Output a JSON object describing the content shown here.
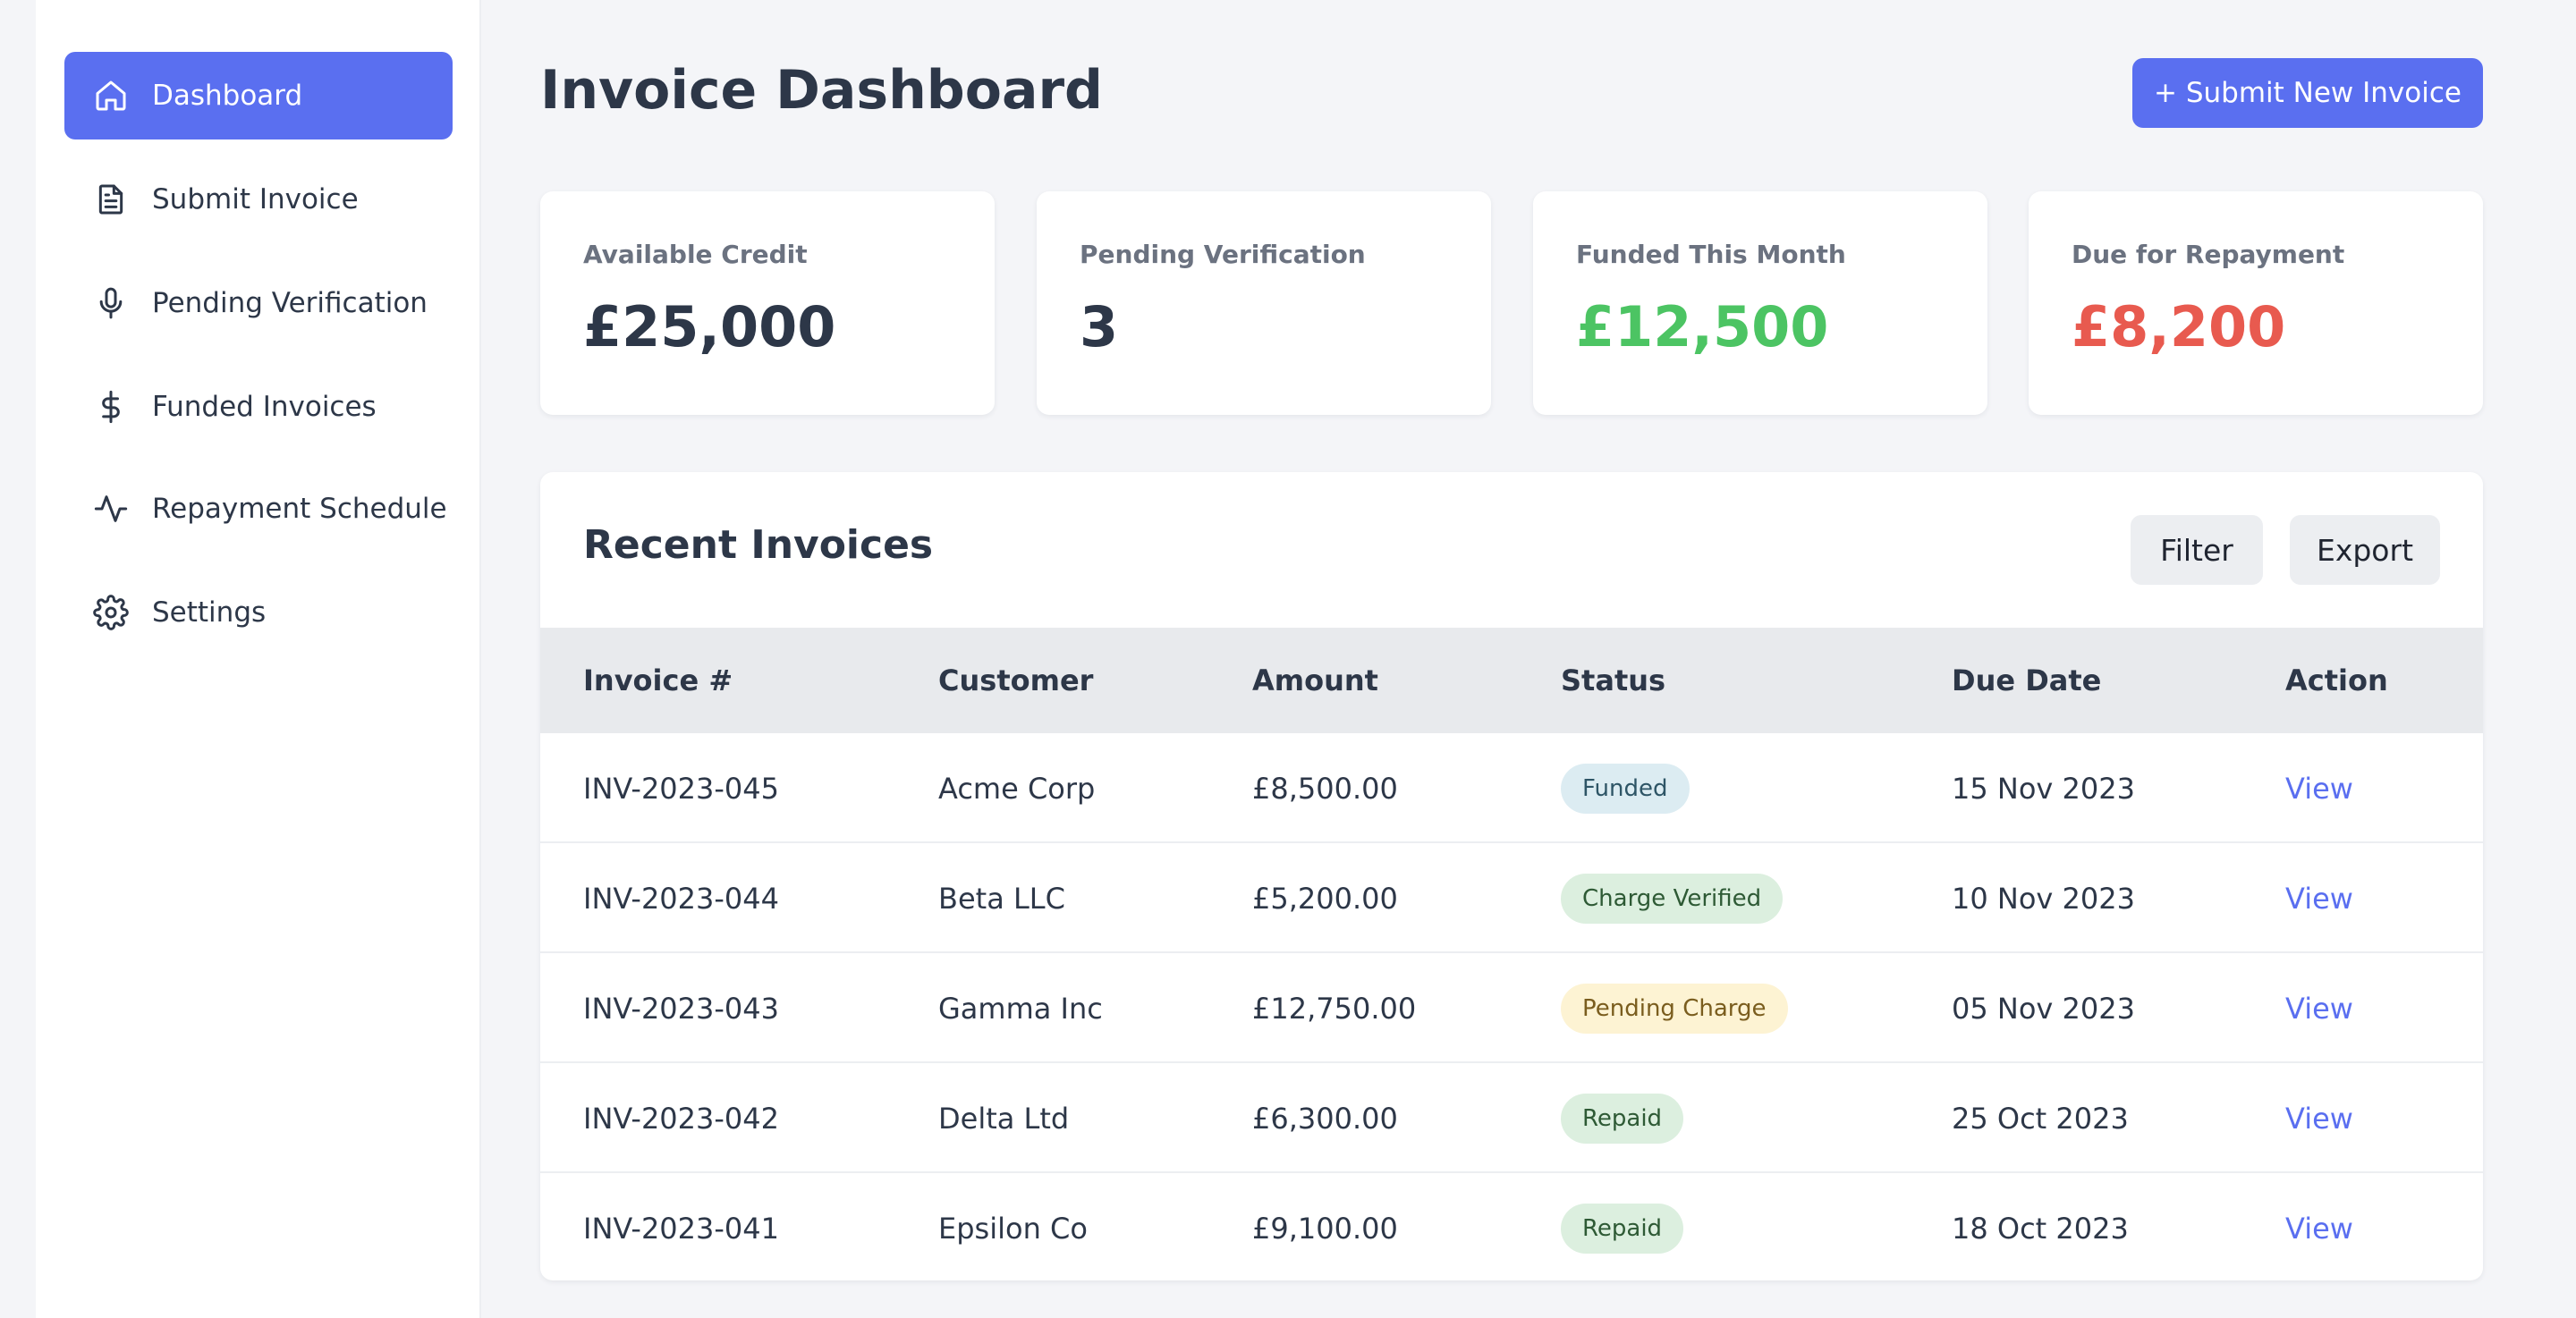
{
  "sidebar": {
    "items": [
      {
        "label": "Dashboard",
        "icon": "home-icon",
        "active": true
      },
      {
        "label": "Submit Invoice",
        "icon": "document-icon",
        "active": false
      },
      {
        "label": "Pending Verification",
        "icon": "microphone-icon",
        "active": false
      },
      {
        "label": "Funded Invoices",
        "icon": "dollar-icon",
        "active": false
      },
      {
        "label": "Repayment Schedule",
        "icon": "activity-icon",
        "active": false
      },
      {
        "label": "Settings",
        "icon": "gear-icon",
        "active": false
      }
    ]
  },
  "header": {
    "title": "Invoice Dashboard",
    "submit_button": "+ Submit New Invoice"
  },
  "stats": [
    {
      "label": "Available Credit",
      "value": "£25,000",
      "color": "#2d3748"
    },
    {
      "label": "Pending Verification",
      "value": "3",
      "color": "#2d3748"
    },
    {
      "label": "Funded This Month",
      "value": "£12,500",
      "color": "#4cc463"
    },
    {
      "label": "Due for Repayment",
      "value": "£8,200",
      "color": "#e85a4f"
    }
  ],
  "invoices": {
    "title": "Recent Invoices",
    "filter_button": "Filter",
    "export_button": "Export",
    "columns": [
      "Invoice #",
      "Customer",
      "Amount",
      "Status",
      "Due Date",
      "Action"
    ],
    "rows": [
      {
        "invoice": "INV-2023-045",
        "customer": "Acme Corp",
        "amount": "£8,500.00",
        "status": "Funded",
        "status_bg": "#dcecf2",
        "status_fg": "#2e5566",
        "due": "15 Nov 2023",
        "action": "View"
      },
      {
        "invoice": "INV-2023-044",
        "customer": "Beta LLC",
        "amount": "£5,200.00",
        "status": "Charge Verified",
        "status_bg": "#dcefdf",
        "status_fg": "#2e5a35",
        "due": "10 Nov 2023",
        "action": "View"
      },
      {
        "invoice": "INV-2023-043",
        "customer": "Gamma Inc",
        "amount": "£12,750.00",
        "status": "Pending Charge",
        "status_bg": "#fdf3d3",
        "status_fg": "#7a5d1e",
        "due": "05 Nov 2023",
        "action": "View"
      },
      {
        "invoice": "INV-2023-042",
        "customer": "Delta Ltd",
        "amount": "£6,300.00",
        "status": "Repaid",
        "status_bg": "#dcefdf",
        "status_fg": "#2e5a35",
        "due": "25 Oct 2023",
        "action": "View"
      },
      {
        "invoice": "INV-2023-041",
        "customer": "Epsilon Co",
        "amount": "£9,100.00",
        "status": "Repaid",
        "status_bg": "#dcefdf",
        "status_fg": "#2e5a35",
        "due": "18 Oct 2023",
        "action": "View"
      }
    ]
  },
  "colors": {
    "accent": "#5a6ff0",
    "positive": "#4cc463",
    "negative": "#e85a4f"
  }
}
